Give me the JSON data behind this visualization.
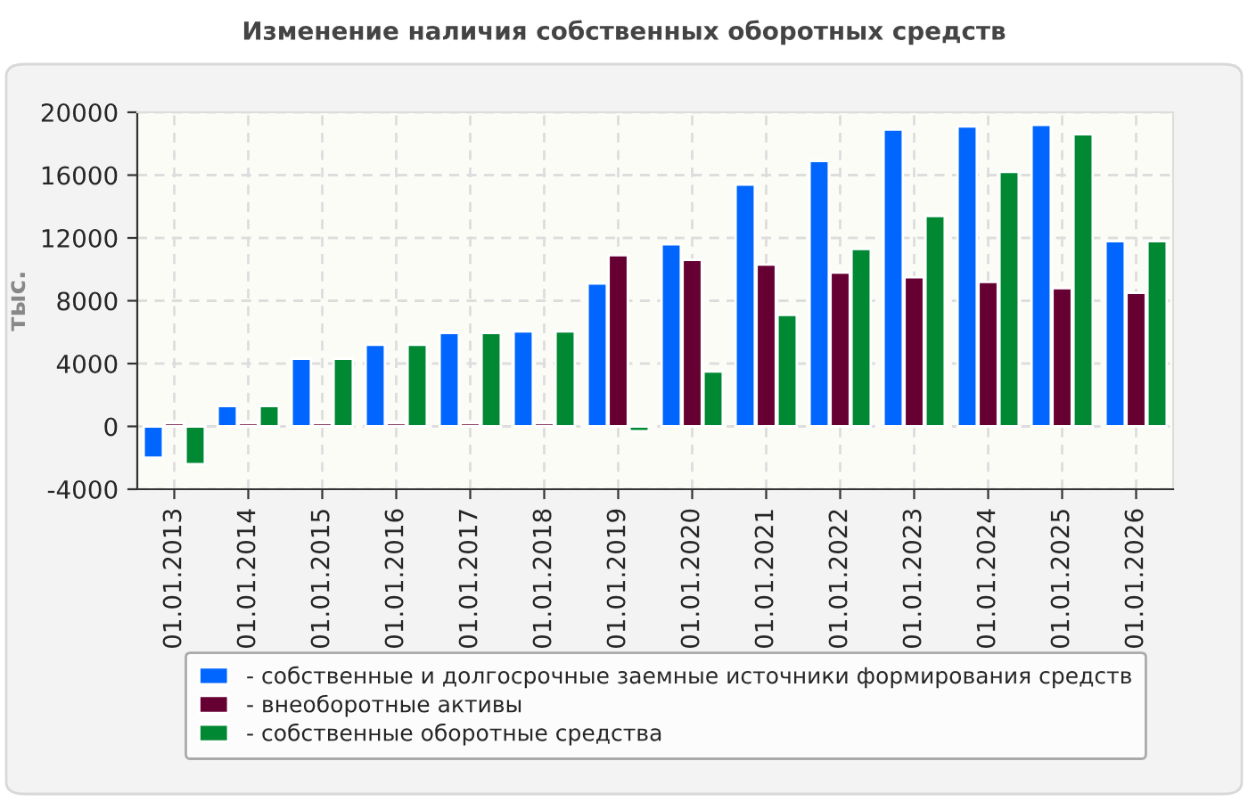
{
  "chart_data": {
    "type": "bar",
    "title": "Изменение наличия собственных оборотных средств",
    "ylabel": "тыс.",
    "categories": [
      "01.01.2013",
      "01.01.2014",
      "01.01.2015",
      "01.01.2016",
      "01.01.2017",
      "01.01.2018",
      "01.01.2019",
      "01.01.2020",
      "01.01.2021",
      "01.01.2022",
      "01.01.2023",
      "01.01.2024",
      "01.01.2025",
      "01.01.2026"
    ],
    "series": [
      {
        "name": "- собственные и долгосрочные заемные источники формирования средств",
        "color": "#0066ff",
        "values": [
          -2000,
          1300,
          4300,
          5200,
          5950,
          6050,
          9100,
          11600,
          15400,
          16900,
          18900,
          19100,
          19200,
          11800
        ]
      },
      {
        "name": "- внеоборотные активы",
        "color": "#660033",
        "values": [
          200,
          200,
          200,
          200,
          200,
          200,
          10900,
          10600,
          10300,
          9800,
          9500,
          9200,
          8800,
          8500
        ]
      },
      {
        "name": "- собственные оборотные средства",
        "color": "#008833",
        "values": [
          -2400,
          1300,
          4300,
          5200,
          5950,
          6050,
          -300,
          3500,
          7100,
          11300,
          13400,
          16200,
          18600,
          11800
        ]
      }
    ],
    "ylim": [
      -4000,
      20000
    ],
    "yticks": [
      -4000,
      0,
      4000,
      8000,
      12000,
      16000,
      20000
    ],
    "grid": true,
    "legend": "bottom"
  }
}
